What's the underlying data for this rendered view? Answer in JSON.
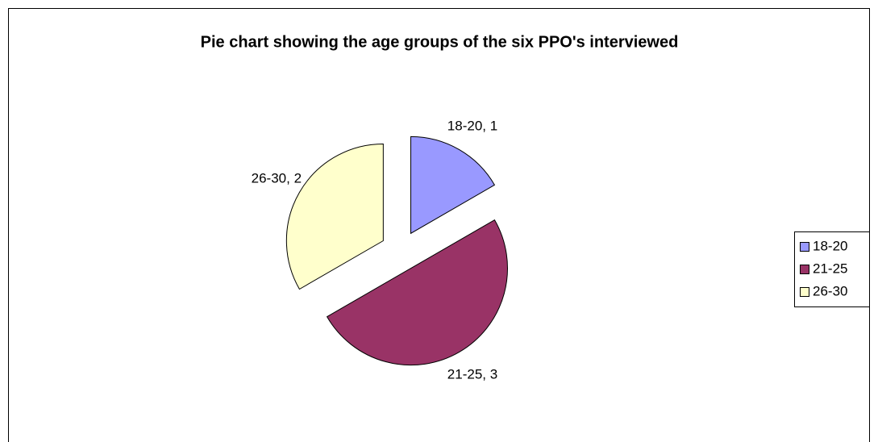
{
  "chart_data": {
    "type": "pie",
    "title": "Pie chart showing the age groups of the six PPO's interviewed",
    "categories": [
      "18-20",
      "21-25",
      "26-30"
    ],
    "values": [
      1,
      3,
      2
    ],
    "value_labels": [
      "18-20, 1",
      "21-25, 3",
      "26-30, 2"
    ],
    "colors": [
      "#9999ff",
      "#993366",
      "#ffffcc"
    ],
    "legend": "right"
  }
}
